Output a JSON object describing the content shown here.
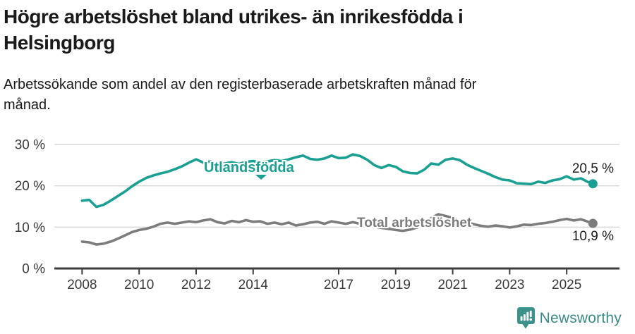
{
  "header": {
    "title_line1": "Högre arbetslöshet bland utrikes- än inrikesfödda i",
    "title_line2": "Helsingborg",
    "subtitle_line1": "Arbetssökande som andel av den registerbaserade arbetskraften månad för",
    "subtitle_line2": "månad."
  },
  "chart_data": {
    "type": "line",
    "title": "Högre arbetslöshet bland utrikes- än inrikesfödda i Helsingborg",
    "subtitle": "Arbetssökande som andel av den registerbaserade arbetskraften månad för månad.",
    "xlabel": "",
    "ylabel": "",
    "ylim": [
      0,
      30
    ],
    "xlim": [
      2007.05,
      2026.9
    ],
    "grid": "horizontal",
    "y_ticks": [
      {
        "v": 0,
        "label": "0 %"
      },
      {
        "v": 10,
        "label": "10 %"
      },
      {
        "v": 20,
        "label": "20 %"
      },
      {
        "v": 30,
        "label": "30 %"
      }
    ],
    "x_ticks": [
      {
        "v": 2008,
        "label": "2008"
      },
      {
        "v": 2010,
        "label": "2010"
      },
      {
        "v": 2012,
        "label": "2012"
      },
      {
        "v": 2014,
        "label": "2014"
      },
      {
        "v": 2017,
        "label": "2017"
      },
      {
        "v": 2019,
        "label": "2019"
      },
      {
        "v": 2021,
        "label": "2021"
      },
      {
        "v": 2023,
        "label": "2023"
      },
      {
        "v": 2025,
        "label": "2025"
      }
    ],
    "x_unit": "decimal_year_monthly_series_approximated_quarterly",
    "series": [
      {
        "name": "Utlandsfödda",
        "color": "#1aa092",
        "end_label": "20,5 %",
        "end_value": 20.5,
        "x": [
          2008,
          2008.25,
          2008.5,
          2008.75,
          2009,
          2009.25,
          2009.5,
          2009.75,
          2010,
          2010.25,
          2010.5,
          2010.75,
          2011,
          2011.25,
          2011.5,
          2011.75,
          2012,
          2012.25,
          2012.5,
          2012.75,
          2013,
          2013.25,
          2013.5,
          2013.75,
          2014,
          2014.25,
          2014.5,
          2014.75,
          2015,
          2015.25,
          2015.5,
          2015.75,
          2016,
          2016.25,
          2016.5,
          2016.75,
          2017,
          2017.25,
          2017.5,
          2017.75,
          2018,
          2018.25,
          2018.5,
          2018.75,
          2019,
          2019.25,
          2019.5,
          2019.75,
          2020,
          2020.25,
          2020.5,
          2020.75,
          2021,
          2021.25,
          2021.5,
          2021.75,
          2022,
          2022.25,
          2022.5,
          2022.75,
          2023,
          2023.25,
          2023.5,
          2023.75,
          2024,
          2024.25,
          2024.5,
          2024.75,
          2025,
          2025.25,
          2025.5,
          2025.75,
          2025.92
        ],
        "y": [
          16.4,
          16.6,
          14.9,
          15.4,
          16.4,
          17.5,
          18.6,
          19.9,
          21.0,
          21.9,
          22.5,
          23.0,
          23.4,
          24.0,
          24.7,
          25.6,
          26.4,
          25.6,
          25.9,
          25.2,
          25.4,
          25.7,
          25.3,
          25.8,
          26.0,
          25.6,
          25.9,
          26.2,
          26.0,
          26.4,
          26.9,
          27.3,
          26.5,
          26.3,
          26.6,
          27.3,
          26.7,
          26.8,
          27.6,
          27.2,
          26.3,
          25.0,
          24.3,
          25.0,
          24.6,
          23.5,
          23.1,
          23.0,
          23.9,
          25.4,
          25.1,
          26.3,
          26.6,
          26.2,
          25.1,
          24.3,
          23.6,
          22.9,
          22.1,
          21.5,
          21.3,
          20.6,
          20.5,
          20.4,
          21.0,
          20.7,
          21.3,
          21.6,
          22.3,
          21.5,
          21.8,
          20.9,
          20.5
        ]
      },
      {
        "name": "Total arbetslöshet",
        "color": "#7c7c7c",
        "end_label": "10,9 %",
        "end_value": 10.9,
        "x": [
          2008,
          2008.25,
          2008.5,
          2008.75,
          2009,
          2009.25,
          2009.5,
          2009.75,
          2010,
          2010.25,
          2010.5,
          2010.75,
          2011,
          2011.25,
          2011.5,
          2011.75,
          2012,
          2012.25,
          2012.5,
          2012.75,
          2013,
          2013.25,
          2013.5,
          2013.75,
          2014,
          2014.25,
          2014.5,
          2014.75,
          2015,
          2015.25,
          2015.5,
          2015.75,
          2016,
          2016.25,
          2016.5,
          2016.75,
          2017,
          2017.25,
          2017.5,
          2017.75,
          2018,
          2018.25,
          2018.5,
          2018.75,
          2019,
          2019.25,
          2019.5,
          2019.75,
          2020,
          2020.25,
          2020.5,
          2020.75,
          2021,
          2021.25,
          2021.5,
          2021.75,
          2022,
          2022.25,
          2022.5,
          2022.75,
          2023,
          2023.25,
          2023.5,
          2023.75,
          2024,
          2024.25,
          2024.5,
          2024.75,
          2025,
          2025.25,
          2025.5,
          2025.75,
          2025.92
        ],
        "y": [
          6.5,
          6.3,
          5.8,
          6.0,
          6.5,
          7.2,
          8.0,
          8.8,
          9.3,
          9.6,
          10.1,
          10.8,
          11.1,
          10.8,
          11.1,
          11.4,
          11.2,
          11.6,
          11.9,
          11.2,
          10.9,
          11.5,
          11.2,
          11.7,
          11.3,
          11.4,
          10.8,
          11.1,
          10.7,
          11.1,
          10.4,
          10.7,
          11.1,
          11.3,
          10.8,
          11.4,
          11.1,
          10.8,
          11.2,
          10.8,
          10.5,
          10.1,
          9.8,
          9.6,
          9.3,
          9.1,
          9.4,
          9.9,
          10.6,
          12.2,
          13.1,
          12.7,
          12.2,
          11.7,
          11.1,
          10.7,
          10.3,
          10.1,
          10.4,
          10.2,
          9.9,
          10.2,
          10.6,
          10.5,
          10.8,
          11.0,
          11.3,
          11.7,
          12.0,
          11.6,
          11.9,
          11.3,
          10.9
        ]
      }
    ]
  },
  "footer": {
    "brand": "Newsworthy"
  },
  "colors": {
    "teal_line": "#1aa092",
    "gray_line": "#7c7c7c",
    "gridline": "#d9d9d9",
    "axis": "#3d3d3d",
    "text": "#1a1a1a",
    "tick_text": "#3a3a3a",
    "logo": "#3a8a85"
  }
}
